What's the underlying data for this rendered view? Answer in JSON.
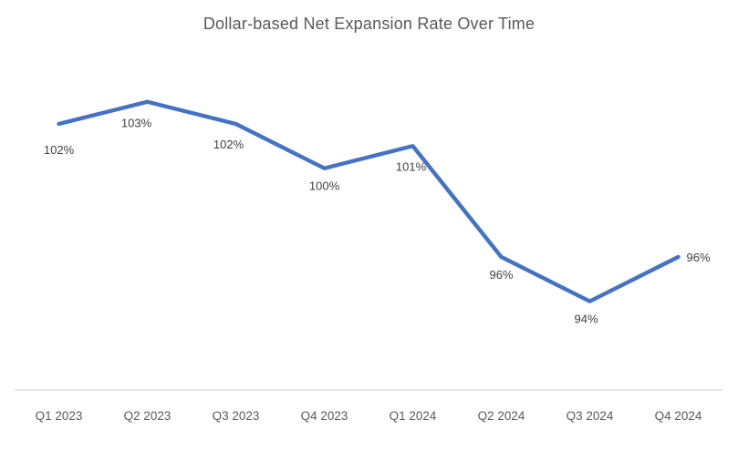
{
  "chart_data": {
    "type": "line",
    "title": "Dollar-based Net Expansion Rate Over Time",
    "categories": [
      "Q1 2023",
      "Q2 2023",
      "Q3 2023",
      "Q4 2023",
      "Q1 2024",
      "Q2 2024",
      "Q3 2024",
      "Q4 2024"
    ],
    "values": [
      102,
      103,
      102,
      100,
      101,
      96,
      94,
      96
    ],
    "unit": "%",
    "data_labels": [
      "102%",
      "103%",
      "102%",
      "100%",
      "101%",
      "96%",
      "94%",
      "96%"
    ],
    "xlabel": "",
    "ylabel": "",
    "ylim": [
      90,
      105
    ],
    "grid": false,
    "legend": "none",
    "colors": {
      "line": "#4472C4",
      "title": "#595959",
      "data_label": "#404040",
      "axis_label": "#595959",
      "axis_line": "#D9D9D9",
      "background": "#FFFFFF"
    }
  }
}
